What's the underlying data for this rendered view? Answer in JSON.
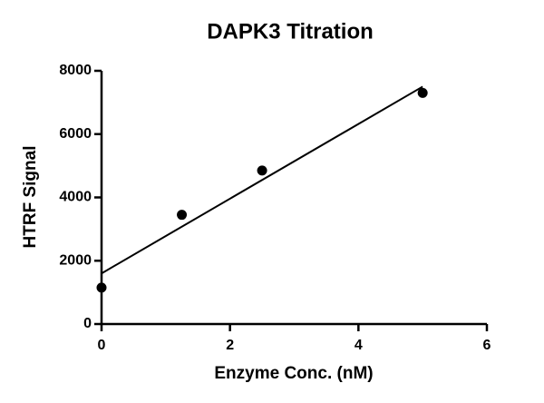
{
  "chart_data": {
    "type": "scatter",
    "title": "DAPK3 Titration",
    "x_label": "Enzyme Conc. (nM)",
    "y_label": "HTRF Signal",
    "x": [
      0,
      1.25,
      2.5,
      5
    ],
    "values": [
      1150,
      3450,
      4850,
      7300
    ],
    "color": "#000000",
    "fit": {
      "x": [
        0,
        5
      ],
      "values": [
        1600,
        7500
      ]
    },
    "xlim": [
      0,
      6
    ],
    "xticks": [
      0,
      2,
      4,
      6
    ],
    "ylim": [
      0,
      8000
    ],
    "yticks": [
      0,
      2000,
      4000,
      6000,
      8000
    ]
  }
}
